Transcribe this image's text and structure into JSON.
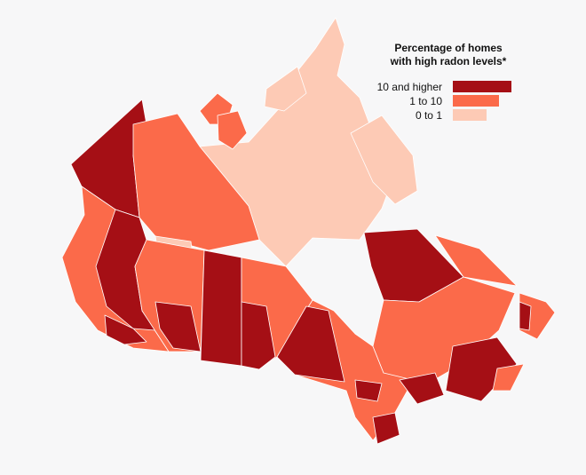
{
  "legend": {
    "title_lines": [
      "Percentage of homes",
      "with high radon levels*"
    ],
    "items": [
      {
        "label": "10 and higher",
        "color": "#a50f15"
      },
      {
        "label": "1 to 10",
        "color": "#fb6a4a"
      },
      {
        "label": "0 to 1",
        "color": "#fdcab5"
      }
    ]
  }
}
